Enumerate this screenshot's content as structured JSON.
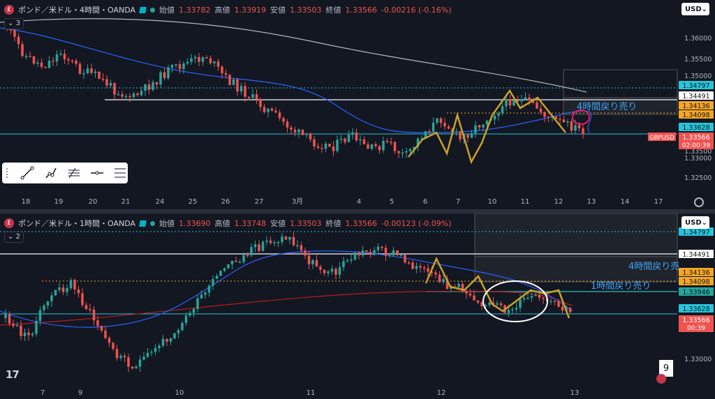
{
  "top": {
    "header": {
      "symbol": "ポンド／米ドル・4時間・OANDA",
      "open_label": "始値",
      "open": "1.33782",
      "high_label": "高値",
      "high": "1.33919",
      "low_label": "安値",
      "low": "1.33503",
      "close_label": "終値",
      "close": "1.33566",
      "change": "-0.00216 (-0.16%)"
    },
    "indicator_count": "3",
    "currency": "USD",
    "price_ticks": [
      "1.36000",
      "1.35500",
      "1.35000",
      "1.33500",
      "1.33000",
      "1.32500"
    ],
    "price_tags": [
      {
        "text": "1.34797",
        "color": "#26c6da"
      },
      {
        "text": "1.34491",
        "color": "#ffffff"
      },
      {
        "text": "1.34136",
        "color": "#f5a623"
      },
      {
        "text": "1.34098",
        "color": "#f5a623"
      },
      {
        "text": "1.33628",
        "color": "#26c6da"
      }
    ],
    "last_tag": {
      "symbol": "GBPUSD",
      "price": "1.33566",
      "timer": "02:00:39"
    },
    "time_labels": [
      "18",
      "19",
      "20",
      "21",
      "24",
      "25",
      "26",
      "27",
      "3月",
      "4",
      "5",
      "6",
      "7",
      "10",
      "11",
      "12",
      "13",
      "14",
      "17"
    ],
    "annotation": "4時間戻り売り"
  },
  "bottom": {
    "header": {
      "symbol": "ポンド／米ドル・1時間・OANDA",
      "open_label": "始値",
      "open": "1.33690",
      "high_label": "高値",
      "high": "1.33748",
      "low_label": "安値",
      "low": "1.33503",
      "close_label": "終値",
      "close": "1.33566",
      "change": "-0.00123 (-0.09%)"
    },
    "indicator_count": "2",
    "currency": "USD",
    "price_ticks": [
      "1.33000"
    ],
    "price_tags": [
      {
        "text": "1.34797",
        "color": "#26c6da"
      },
      {
        "text": "1.34491",
        "color": "#ffffff"
      },
      {
        "text": "1.34136",
        "color": "#f5a623"
      },
      {
        "text": "1.34098",
        "color": "#f5a623"
      },
      {
        "text": "1.33946",
        "color": "#26a69a"
      },
      {
        "text": "1.33628",
        "color": "#26c6da"
      }
    ],
    "last_tag": {
      "price": "1.33566",
      "timer": "00:39"
    },
    "time_labels": [
      "7",
      "9",
      "10",
      "11",
      "12",
      "13"
    ],
    "annotation_4h": "4時間戻り売",
    "annotation_1h": "1時間戻り売り"
  },
  "tools": [
    "trend-line-tool",
    "ray-tool",
    "fib-tool",
    "horizontal-line-tool",
    "levels-tool"
  ],
  "badge": "9",
  "logo": "17",
  "colors": {
    "up": "#26a69a",
    "down": "#ef5350",
    "ma_fast": "#2962ff",
    "ma_slow": "#b2b5be",
    "zigzag": "#c9a227",
    "bg": "#131722"
  }
}
